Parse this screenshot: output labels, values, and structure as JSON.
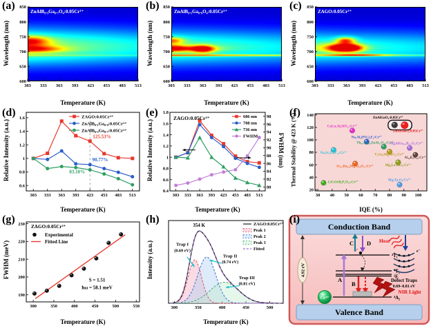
{
  "figure": {
    "panels": {
      "a": {
        "tag": "(a)"
      },
      "b": {
        "tag": "(b)"
      },
      "c": {
        "tag": "(c)"
      },
      "d": {
        "tag": "(d)"
      },
      "e": {
        "tag": "(e)"
      },
      "f": {
        "tag": "(f)"
      },
      "g": {
        "tag": "(g)"
      },
      "h": {
        "tag": "(h)"
      },
      "i": {
        "tag": "(i)",
        "conduction_band": "Conduction Band",
        "valence_band": "Valence Band",
        "band_gap": "4.92 eV",
        "level_t1": "⁴T₁",
        "level_t2": "⁴T₂",
        "level_e": "²E",
        "level_a2": "⁴A₂",
        "arrow_a": "A",
        "arrow_b": "B",
        "arrow_c": "C",
        "arrow_d": "D",
        "heat": "Heat",
        "defect_traps": "Defect Traps",
        "trap_depth_range": "0.69–0.81 eV",
        "nir_light": "NIR Light",
        "cr_ion": "Cr³⁺",
        "electron": "e⁻"
      }
    }
  },
  "chart_data": [
    {
      "panel": "a",
      "type": "heatmap",
      "title": "ZnAlB₀.₃Ga₀.₇O₄:0.05Cr³⁺",
      "xlabel": "Temperature (K)",
      "ylabel": "Wavelength (nm)",
      "xlim": [
        303,
        513
      ],
      "ylim": [
        600,
        850
      ],
      "x_ticks": [
        303,
        333,
        363,
        393,
        423,
        453,
        483,
        513
      ],
      "y_ticks": [
        600,
        650,
        700,
        750,
        800,
        850
      ],
      "band": {
        "center": 716,
        "sigma": 44,
        "amp": 0.58,
        "decay": 0.35
      },
      "line687": 0.15,
      "hotspots": [
        [
          308,
          735,
          26,
          12,
          0.5
        ],
        [
          313,
          708,
          40,
          8,
          0.45
        ]
      ]
    },
    {
      "panel": "b",
      "type": "heatmap",
      "title": "ZnAlB₀.₁Ga₀.₉O₄:0.05Cr³⁺",
      "xlabel": "Temperature (K)",
      "ylabel": "Wavelength (nm)",
      "xlim": [
        303,
        513
      ],
      "ylim": [
        600,
        850
      ],
      "x_ticks": [
        303,
        333,
        363,
        393,
        423,
        453,
        483,
        513
      ],
      "y_ticks": [
        600,
        650,
        700,
        750,
        800,
        850
      ],
      "band": {
        "center": 714,
        "sigma": 42,
        "amp": 0.5,
        "decay": 0.3
      },
      "line687": 0.5,
      "hotspots": [
        [
          304,
          737,
          16,
          8,
          0.42
        ],
        [
          304,
          710,
          24,
          8,
          0.48
        ],
        [
          363,
          708,
          15,
          9,
          0.62
        ],
        [
          335,
          710,
          45,
          7,
          0.2
        ]
      ]
    },
    {
      "panel": "c",
      "type": "heatmap",
      "title": "ZAGO:0.05Cr³⁺",
      "xlabel": "Temperature (K)",
      "ylabel": "Wavelength (nm)",
      "xlim": [
        303,
        513
      ],
      "ylim": [
        600,
        850
      ],
      "x_ticks": [
        303,
        333,
        363,
        393,
        423,
        453,
        483,
        513
      ],
      "y_ticks": [
        600,
        650,
        700,
        750,
        800,
        850
      ],
      "band": {
        "center": 712,
        "sigma": 40,
        "amp": 0.46,
        "decay": 0.28
      },
      "line687": 0.25,
      "hotspots": [
        [
          363,
          712,
          20,
          9,
          0.88
        ],
        [
          361,
          737,
          13,
          8,
          0.55
        ],
        [
          383,
          688,
          42,
          2.5,
          0.45
        ],
        [
          345,
          712,
          32,
          11,
          0.28
        ]
      ]
    },
    {
      "panel": "d",
      "type": "line",
      "xlabel": "Temperature (K)",
      "ylabel": "Relative Intensity (a.u.)",
      "x": [
        303,
        333,
        363,
        393,
        423,
        453,
        483,
        513
      ],
      "xlim": [
        288,
        528
      ],
      "ylim": [
        0.52,
        1.68
      ],
      "y_ticks": [
        0.6,
        0.8,
        1.0,
        1.2,
        1.4,
        1.6
      ],
      "vline": 423,
      "series": [
        {
          "name": "ZAGO:0.05Cr³⁺",
          "color": "#e8382e",
          "marker": "square",
          "values": [
            1.0,
            1.075,
            1.55,
            1.335,
            1.255,
            1.07,
            1.01,
            1.0
          ]
        },
        {
          "name": "ZnAlB₀.₁Ga₀.₉:0.05Cr³⁺",
          "color": "#2b5fc8",
          "marker": "circle",
          "values": [
            1.0,
            0.985,
            1.11,
            0.92,
            0.908,
            0.85,
            0.795,
            0.73
          ]
        },
        {
          "name": "ZnAlB₀.₃Ga₀.₇:0.05Cr³⁺",
          "color": "#2f9e63",
          "marker": "circle",
          "values": [
            1.0,
            0.85,
            0.88,
            0.865,
            0.831,
            0.77,
            0.7,
            0.61
          ]
        }
      ],
      "annotations": [
        {
          "text": "125.53%",
          "x": 429,
          "y": 1.3,
          "color": "#e8382e",
          "anchor": "start"
        },
        {
          "text": "90.77%",
          "x": 428,
          "y": 0.96,
          "color": "#2b5fc8",
          "anchor": "start"
        },
        {
          "text": "83.10%",
          "x": 396,
          "y": 0.782,
          "color": "#2f9e63",
          "anchor": "middle"
        }
      ]
    },
    {
      "panel": "e",
      "type": "line2",
      "title": "ZAGO:0.05Cr³⁺",
      "xlabel": "Temperature (K)",
      "ylabel": "Relative Intensity (a.u.)",
      "right_label": "FWHM (nm)",
      "x": [
        303,
        333,
        363,
        393,
        423,
        453,
        483,
        513
      ],
      "xlim": [
        288,
        528
      ],
      "ylim": [
        0.4,
        1.8
      ],
      "y_ticks": [
        0.4,
        0.6,
        0.8,
        1.0,
        1.2,
        1.4,
        1.6,
        1.8
      ],
      "right_ylim": [
        79,
        99
      ],
      "right_ticks": [
        80,
        82,
        84,
        86,
        88,
        90,
        92,
        94,
        96,
        98
      ],
      "series": [
        {
          "name": "686 nm",
          "color": "#e8382e",
          "marker": "square",
          "values": [
            1.0,
            1.08,
            1.65,
            1.39,
            1.24,
            1.02,
            0.92,
            0.9
          ]
        },
        {
          "name": "708 nm",
          "color": "#2b5fc8",
          "marker": "circle",
          "values": [
            1.0,
            1.08,
            1.58,
            1.35,
            1.19,
            0.98,
            0.89,
            0.82
          ]
        },
        {
          "name": "736 nm",
          "color": "#2f9e63",
          "marker": "triangle",
          "values": [
            1.0,
            0.99,
            1.35,
            1.0,
            0.83,
            0.63,
            0.55,
            0.5
          ]
        }
      ],
      "fwhm_series": {
        "name": "FWHM",
        "color": "#c07fd8",
        "marker": "circle",
        "values_nm": [
          80.4,
          81.0,
          82.0,
          83.1,
          83.8,
          84.4,
          87.9,
          92.6
        ]
      }
    },
    {
      "panel": "f",
      "type": "scatter",
      "xlabel": "IQE (%)",
      "ylabel": "Thermal Stability @ 423 K (%)",
      "xlim": [
        28,
        106
      ],
      "ylim": [
        18,
        142
      ],
      "x_ticks": [
        30,
        40,
        50,
        60,
        70,
        80,
        90,
        100
      ],
      "y_ticks": [
        20,
        40,
        60,
        80,
        100,
        120,
        140
      ],
      "bg_color": "#f8d7d7",
      "points": [
        {
          "x": 54,
          "y": 115,
          "color": "#e62ec8",
          "label": "CaLu₂Al₄SiO₁₂:Cr³⁺",
          "lx": 47,
          "ly": 120.5,
          "anchor": "middle"
        },
        {
          "x": 64,
          "y": 97,
          "color": "#2b5fd0",
          "label": "Na₃Al₂(PO₄)₂F₃:Cr³⁺",
          "lx": 64,
          "ly": 102.5,
          "anchor": "middle"
        },
        {
          "x": 76,
          "y": 89,
          "color": "#2f9e63",
          "label": "Tb₀.₅La₀.₅ZnAl₁₁O₁₉:Cr³⁺",
          "lx": 70,
          "ly": 94,
          "anchor": "middle"
        },
        {
          "x": 94,
          "y": 87,
          "color": "#a86ae0",
          "label": "MgAlGa₀.₉B₀.₁O₄:Cr³⁺",
          "lx": 92,
          "ly": 92.5,
          "anchor": "middle"
        },
        {
          "x": 41,
          "y": 84,
          "color": "#27c3d8",
          "label": "Na₃Sc₂Li₃F₁₂:Cr³⁺",
          "lx": 41,
          "ly": 78,
          "anchor": "middle"
        },
        {
          "x": 80,
          "y": 81,
          "color": "#b89b1e",
          "label": "Y₃Ga₃MgSiO₁₂:Cr³⁺",
          "lx": 80,
          "ly": 75,
          "anchor": "middle"
        },
        {
          "x": 98,
          "y": 76,
          "color": "#5e4238",
          "label": "Al₁₈B₄O₃₃:Cr³⁺",
          "lx": 98,
          "ly": 70,
          "anchor": "middle"
        },
        {
          "x": 56,
          "y": 62,
          "color": "#f0661e",
          "label": "Sr₀.₂Ba₀.₈MgAl₁₀O₁₇:Cr³⁺",
          "lx": 56,
          "ly": 56,
          "anchor": "middle"
        },
        {
          "x": 86,
          "y": 64,
          "color": "#8f9e1a",
          "label": "Mg₂LaTaO₆:Cr³⁺",
          "lx": 86,
          "ly": 58,
          "anchor": "middle"
        },
        {
          "x": 34,
          "y": 31,
          "color": "#3fae1e",
          "label": "LiCsSrB₅P₂O₁₄:Cr³⁺",
          "lx": 37,
          "ly": 31,
          "anchor": "start"
        },
        {
          "x": 87,
          "y": 28,
          "color": "#4f9ee8",
          "label": "Mg₄Ta₂O₉:Cr³⁺",
          "lx": 87,
          "ly": 34,
          "anchor": "middle"
        }
      ],
      "this_work": {
        "black_label": "ZnAlGaO₄:0.05Cr³⁺",
        "blx": 79,
        "bly": 134.5,
        "red_label": "ZnAlGaO₄:0.05Cr³⁺",
        "rlx": 93,
        "rly": 112.5,
        "box": {
          "x1": 79,
          "x2": 95.5,
          "y1": 116,
          "y2": 131.5
        },
        "gray_ball": {
          "x": 83.5,
          "y": 124
        },
        "red_ball": {
          "x": 90.5,
          "y": 123.5
        }
      }
    },
    {
      "panel": "g",
      "type": "fit",
      "title": "ZAGO:0.05Cr³⁺",
      "xlabel": "Temperature (K)",
      "ylabel": "FWHM (meV)",
      "x": [
        303,
        333,
        363,
        393,
        423,
        453,
        483,
        513
      ],
      "y": [
        190.7,
        192.3,
        195.0,
        201.0,
        204.7,
        210.5,
        219.2,
        224.0
      ],
      "xlim": [
        283,
        558
      ],
      "ylim": [
        186,
        231
      ],
      "x_ticks": [
        300,
        350,
        400,
        450,
        500,
        550
      ],
      "y_ticks": [
        190,
        200,
        210,
        220,
        230
      ],
      "fit_line": [
        [
          305,
          187.8
        ],
        [
          523,
          223.8
        ]
      ],
      "line_color": "#e8382e",
      "legend": [
        "Experimental",
        "Fitted Line"
      ],
      "annotations": [
        {
          "text": "S = 1.51",
          "x": 455,
          "y": 197.5
        },
        {
          "text": "ħω = 58.1 meV",
          "x": 455,
          "y": 193.2
        }
      ]
    },
    {
      "panel": "h",
      "type": "glow",
      "xlabel": "Temperature (K)",
      "ylabel": "Intensity (a.u.)",
      "xlim": [
        288,
        528
      ],
      "ylim": [
        0,
        1.18
      ],
      "x_ticks": [
        300,
        350,
        400,
        450,
        500
      ],
      "main_name": "ZAGO:0.05Cr³⁺",
      "main_color": "#1a1a1a",
      "fitted_name": "Fitted",
      "fitted_color": "#a06ad8",
      "peak_label": {
        "text": "354 K",
        "x": 352,
        "y": 1.09
      },
      "peaks": [
        {
          "name": "Peak 1",
          "c": 343,
          "s": 14,
          "a": 0.62,
          "stroke": "#e34f63",
          "fill": "rgba(242,176,192,0.45)"
        },
        {
          "name": "Peak 2",
          "c": 368,
          "s": 19,
          "a": 0.66,
          "stroke": "#3b6fd4",
          "fill": "rgba(173,205,242,0.40)"
        },
        {
          "name": "Peak 3",
          "c": 405,
          "s": 30,
          "a": 0.3,
          "stroke": "#3fa96b",
          "fill": "rgba(190,232,205,0.40)"
        }
      ],
      "arrow_color": "#18c0c8",
      "traps": [
        {
          "l1": "Trap I",
          "l2": "(0.69 eV)",
          "tx": 317,
          "ty": 0.82,
          "ax": 327,
          "ay": 0.66,
          "bx": 342,
          "by": 0.52
        },
        {
          "l1": "Trap II",
          "l2": "(0.74 eV)",
          "tx": 417,
          "ty": 0.655,
          "ax": 399,
          "ay": 0.57,
          "bx": 374,
          "by": 0.615
        },
        {
          "l1": "Trap III",
          "l2": "(0.81 eV)",
          "tx": 452,
          "ty": 0.345,
          "ax": 436,
          "ay": 0.25,
          "bx": 408,
          "by": 0.225
        }
      ]
    }
  ]
}
